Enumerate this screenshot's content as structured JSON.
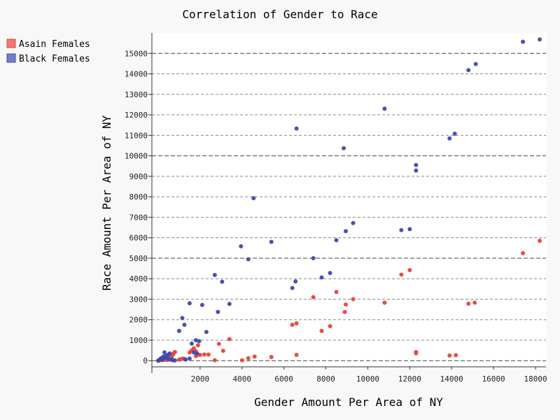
{
  "chart_data": {
    "type": "scatter",
    "title": "Correlation of Gender to Race",
    "xlabel": "Gender Amount Per Area of NY",
    "ylabel": "Race Amount Per Area of NY",
    "xlim": [
      -300,
      18500
    ],
    "ylim": [
      -300,
      16000
    ],
    "xticks": [
      2000,
      4000,
      6000,
      8000,
      10000,
      12000,
      14000,
      16000,
      18000
    ],
    "yticks": [
      0,
      1000,
      2000,
      3000,
      4000,
      5000,
      6000,
      7000,
      8000,
      9000,
      10000,
      11000,
      12000,
      13000,
      14000,
      15000
    ],
    "grid": "horizontal dashed",
    "legend_position": "top-left",
    "series": [
      {
        "name": "Asain Females",
        "color": "#e8453c",
        "points": [
          [
            0,
            0
          ],
          [
            50,
            10
          ],
          [
            100,
            30
          ],
          [
            150,
            50
          ],
          [
            200,
            20
          ],
          [
            250,
            80
          ],
          [
            300,
            40
          ],
          [
            350,
            120
          ],
          [
            400,
            60
          ],
          [
            450,
            30
          ],
          [
            500,
            100
          ],
          [
            550,
            70
          ],
          [
            600,
            150
          ],
          [
            650,
            200
          ],
          [
            700,
            300
          ],
          [
            750,
            380
          ],
          [
            800,
            420
          ],
          [
            1000,
            50
          ],
          [
            1100,
            80
          ],
          [
            1200,
            100
          ],
          [
            1300,
            60
          ],
          [
            1500,
            400
          ],
          [
            1600,
            500
          ],
          [
            1700,
            600
          ],
          [
            1800,
            450
          ],
          [
            1800,
            220
          ],
          [
            1900,
            300
          ],
          [
            1900,
            750
          ],
          [
            2000,
            280
          ],
          [
            2200,
            300
          ],
          [
            2400,
            300
          ],
          [
            2700,
            20
          ],
          [
            2900,
            820
          ],
          [
            3100,
            480
          ],
          [
            3400,
            1050
          ],
          [
            4000,
            20
          ],
          [
            4300,
            120
          ],
          [
            4600,
            200
          ],
          [
            5400,
            180
          ],
          [
            6400,
            1750
          ],
          [
            6600,
            1820
          ],
          [
            6600,
            280
          ],
          [
            7400,
            3100
          ],
          [
            7800,
            1450
          ],
          [
            8200,
            1680
          ],
          [
            8500,
            3350
          ],
          [
            8900,
            2380
          ],
          [
            8950,
            2740
          ],
          [
            9300,
            3000
          ],
          [
            10800,
            2830
          ],
          [
            11600,
            4200
          ],
          [
            12000,
            4420
          ],
          [
            12300,
            420
          ],
          [
            12300,
            360
          ],
          [
            13900,
            250
          ],
          [
            14200,
            270
          ],
          [
            14800,
            2780
          ],
          [
            15100,
            2830
          ],
          [
            17400,
            5250
          ],
          [
            18200,
            5850
          ]
        ]
      },
      {
        "name": "Black Females",
        "color": "#3b4bb0",
        "points": [
          [
            0,
            0
          ],
          [
            50,
            30
          ],
          [
            100,
            80
          ],
          [
            150,
            120
          ],
          [
            200,
            60
          ],
          [
            250,
            200
          ],
          [
            300,
            400
          ],
          [
            350,
            150
          ],
          [
            400,
            250
          ],
          [
            450,
            100
          ],
          [
            500,
            300
          ],
          [
            550,
            350
          ],
          [
            600,
            50
          ],
          [
            650,
            40
          ],
          [
            700,
            20
          ],
          [
            800,
            10
          ],
          [
            1000,
            1450
          ],
          [
            1150,
            2080
          ],
          [
            1250,
            1750
          ],
          [
            1300,
            60
          ],
          [
            1500,
            2800
          ],
          [
            1500,
            100
          ],
          [
            1600,
            830
          ],
          [
            1700,
            400
          ],
          [
            1800,
            1000
          ],
          [
            1850,
            350
          ],
          [
            1950,
            950
          ],
          [
            2100,
            2720
          ],
          [
            2300,
            1400
          ],
          [
            2700,
            4180
          ],
          [
            2850,
            2380
          ],
          [
            3050,
            3850
          ],
          [
            3400,
            2770
          ],
          [
            3950,
            5580
          ],
          [
            4300,
            4950
          ],
          [
            4550,
            7930
          ],
          [
            5400,
            5800
          ],
          [
            6400,
            3550
          ],
          [
            6550,
            3870
          ],
          [
            6600,
            11330
          ],
          [
            7400,
            5000
          ],
          [
            7800,
            4060
          ],
          [
            8200,
            4280
          ],
          [
            8500,
            5880
          ],
          [
            8850,
            10370
          ],
          [
            8950,
            6320
          ],
          [
            9300,
            6720
          ],
          [
            10800,
            12300
          ],
          [
            11600,
            6370
          ],
          [
            12000,
            6420
          ],
          [
            12300,
            9550
          ],
          [
            12300,
            9280
          ],
          [
            13900,
            10850
          ],
          [
            14150,
            11080
          ],
          [
            14800,
            14180
          ],
          [
            15150,
            14480
          ],
          [
            17400,
            15570
          ],
          [
            18200,
            15680
          ]
        ]
      }
    ]
  }
}
